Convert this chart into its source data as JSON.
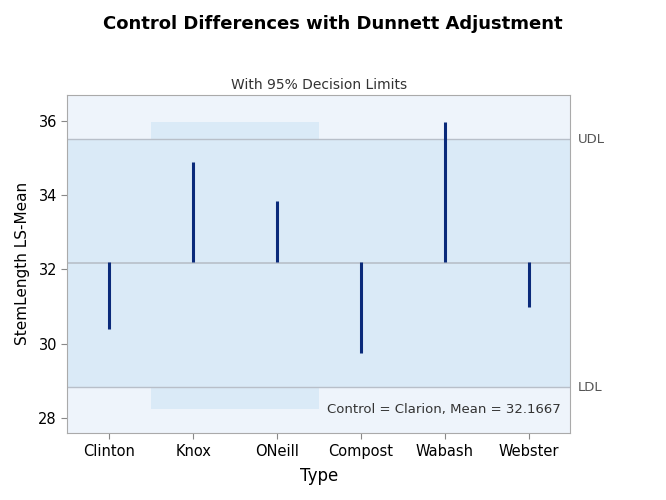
{
  "title": "Control Differences with Dunnett Adjustment",
  "subtitle": "With 95% Decision Limits",
  "xlabel": "Type",
  "ylabel": "StemLength LS-Mean",
  "control_label": "Control = Clarion, Mean = 32.1667",
  "control_mean": 32.1667,
  "udl": 35.5,
  "ldl": 28.83,
  "udl_label": "UDL",
  "ldl_label": "LDL",
  "ylim": [
    27.6,
    36.7
  ],
  "yticks": [
    28,
    30,
    32,
    34,
    36
  ],
  "categories": [
    "Clinton",
    "Knox",
    "ONeill",
    "Compost",
    "Wabash",
    "Webster"
  ],
  "ci_lower": [
    30.4,
    32.2,
    32.2,
    29.75,
    32.2,
    31.0
  ],
  "ci_upper": [
    32.2,
    34.9,
    33.85,
    32.2,
    35.95,
    32.2
  ],
  "knox_udl": 35.95,
  "knox_ldl": 28.25,
  "background_color": "#ffffff",
  "band_color": "#daeaf7",
  "line_color": "#0a2a7a",
  "ref_line_color": "#b8bfc9",
  "udl_ldl_line_color": "#b8bfc9",
  "axis_bg_color": "#eef4fb"
}
